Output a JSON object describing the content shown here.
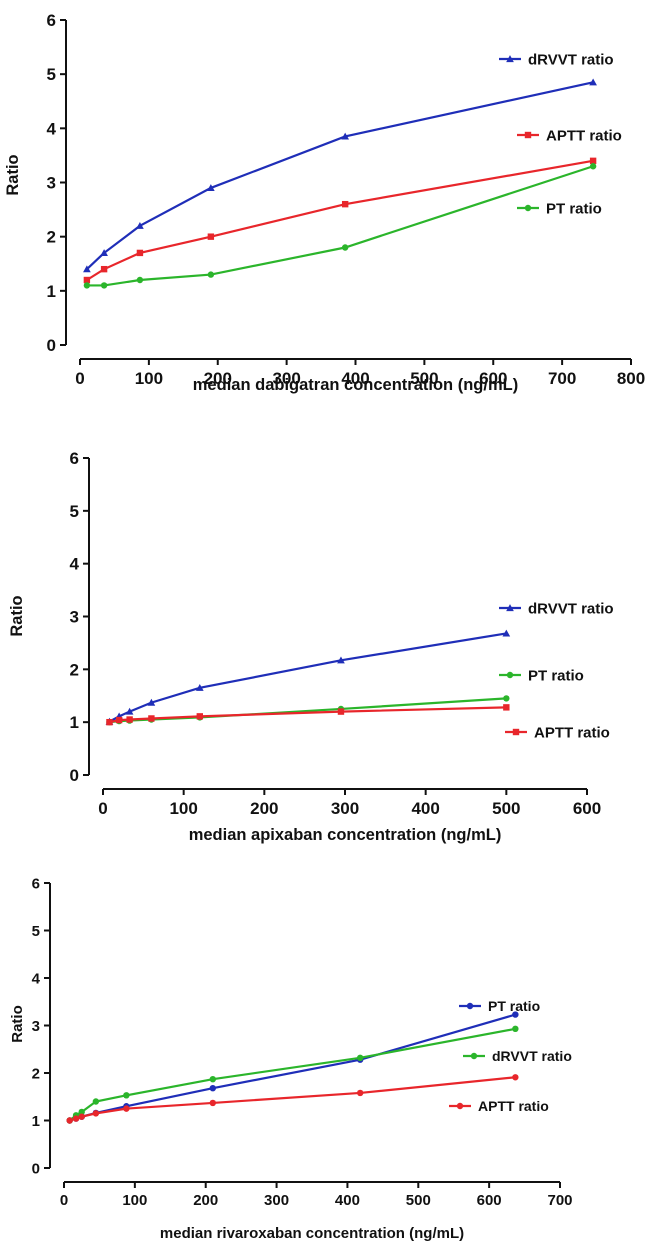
{
  "chart_data": [
    {
      "type": "line",
      "xlabel": "median dabigatran concentration (ng/mL)",
      "ylabel": "Ratio",
      "xlim": [
        0,
        800
      ],
      "ylim": [
        0,
        6
      ],
      "xticks": [
        "0",
        "100",
        "200",
        "300",
        "400",
        "500",
        "600",
        "700",
        "800"
      ],
      "yticks": [
        "0",
        "1",
        "2",
        "3",
        "4",
        "5",
        "6"
      ],
      "series": [
        {
          "name": "dRVVT ratio",
          "color": "#1f2eb8",
          "marker": "triangle",
          "x": [
            10,
            35,
            87,
            190,
            385,
            745
          ],
          "y": [
            1.4,
            1.7,
            2.2,
            2.9,
            3.85,
            4.85
          ]
        },
        {
          "name": "APTT ratio",
          "color": "#e8262b",
          "marker": "square",
          "x": [
            10,
            35,
            87,
            190,
            385,
            745
          ],
          "y": [
            1.2,
            1.4,
            1.7,
            2.0,
            2.6,
            3.4
          ]
        },
        {
          "name": "PT ratio",
          "color": "#2bb52b",
          "marker": "circle",
          "x": [
            10,
            35,
            87,
            190,
            385,
            745
          ],
          "y": [
            1.1,
            1.1,
            1.2,
            1.3,
            1.8,
            3.3
          ]
        }
      ]
    },
    {
      "type": "line",
      "xlabel": "median apixaban concentration (ng/mL)",
      "ylabel": "Ratio",
      "xlim": [
        0,
        600
      ],
      "ylim": [
        0,
        6
      ],
      "xticks": [
        "0",
        "100",
        "200",
        "300",
        "400",
        "500",
        "600"
      ],
      "yticks": [
        "0",
        "1",
        "2",
        "3",
        "4",
        "5",
        "6"
      ],
      "series": [
        {
          "name": "dRVVT ratio",
          "color": "#1f2eb8",
          "marker": "triangle",
          "x": [
            8,
            20,
            33,
            60,
            120,
            295,
            500
          ],
          "y": [
            1.01,
            1.11,
            1.2,
            1.37,
            1.65,
            2.17,
            2.68
          ]
        },
        {
          "name": "PT ratio",
          "color": "#2bb52b",
          "marker": "circle",
          "x": [
            8,
            20,
            33,
            60,
            120,
            295,
            500
          ],
          "y": [
            1.0,
            1.02,
            1.03,
            1.05,
            1.09,
            1.25,
            1.45
          ]
        },
        {
          "name": "APTT ratio",
          "color": "#e8262b",
          "marker": "square",
          "x": [
            8,
            20,
            33,
            60,
            120,
            295,
            500
          ],
          "y": [
            1.0,
            1.04,
            1.05,
            1.07,
            1.11,
            1.2,
            1.28
          ]
        }
      ]
    },
    {
      "type": "line",
      "xlabel": "median rivaroxaban concentration (ng/mL)",
      "ylabel": "Ratio",
      "xlim": [
        0,
        700
      ],
      "ylim": [
        0,
        6
      ],
      "xticks": [
        "0",
        "100",
        "200",
        "300",
        "400",
        "500",
        "600",
        "700"
      ],
      "yticks": [
        "0",
        "1",
        "2",
        "3",
        "4",
        "5",
        "6"
      ],
      "series": [
        {
          "name": "PT ratio",
          "color": "#1f2eb8",
          "marker": "circle",
          "x": [
            8,
            17,
            25,
            45,
            88,
            210,
            418,
            637
          ],
          "y": [
            1.0,
            1.04,
            1.08,
            1.16,
            1.3,
            1.68,
            2.28,
            3.23
          ]
        },
        {
          "name": "dRVVT ratio",
          "color": "#2bb52b",
          "marker": "circle",
          "x": [
            8,
            17,
            25,
            45,
            88,
            210,
            418,
            637
          ],
          "y": [
            1.0,
            1.11,
            1.18,
            1.4,
            1.53,
            1.87,
            2.32,
            2.93
          ]
        },
        {
          "name": "APTT ratio",
          "color": "#e8262b",
          "marker": "circle",
          "x": [
            8,
            17,
            25,
            45,
            88,
            210,
            418,
            637
          ],
          "y": [
            1.0,
            1.04,
            1.08,
            1.15,
            1.25,
            1.37,
            1.58,
            1.91
          ]
        }
      ]
    }
  ]
}
